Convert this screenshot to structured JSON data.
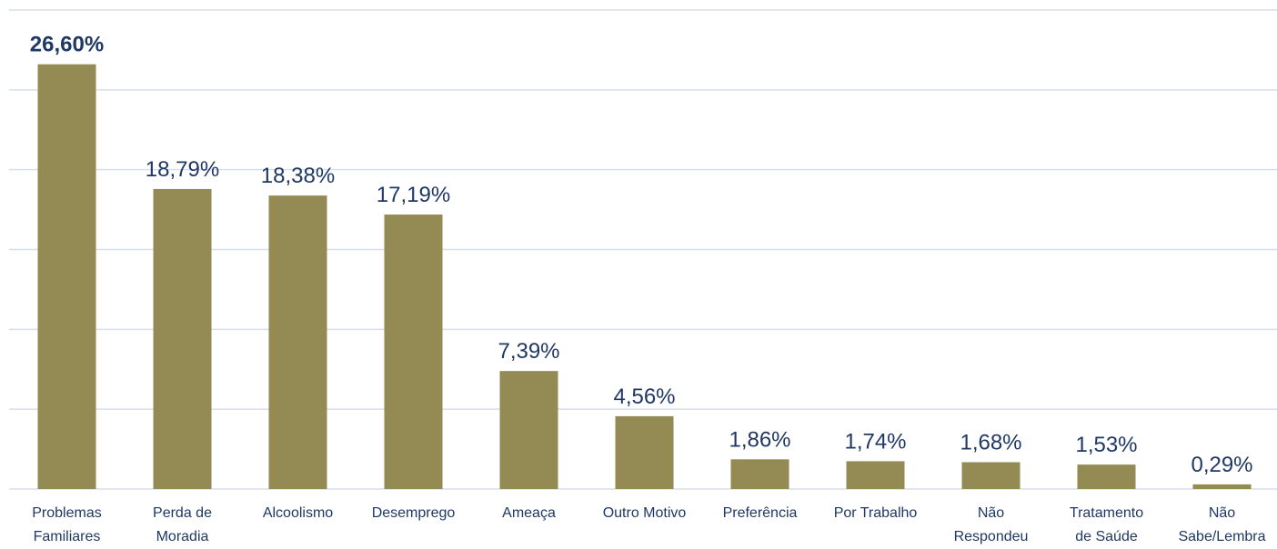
{
  "chart_data": {
    "type": "bar",
    "categories": [
      "Problemas\nFamiliares",
      "Perda de\nMoradia",
      "Alcoolismo",
      "Desemprego",
      "Ameaça",
      "Outro Motivo",
      "Preferência",
      "Por Trabalho",
      "Não\nRespondeu",
      "Tratamento\nde Saúde",
      "Não\nSabe/Lembra"
    ],
    "values": [
      26.6,
      18.79,
      18.38,
      17.19,
      7.39,
      4.56,
      1.86,
      1.74,
      1.68,
      1.53,
      0.29
    ],
    "value_labels": [
      "26,60%",
      "18,79%",
      "18,38%",
      "17,19%",
      "7,39%",
      "4,56%",
      "1,86%",
      "1,74%",
      "1,68%",
      "1,53%",
      "0,29%"
    ],
    "color": "#948a54",
    "ylim": [
      0,
      30
    ],
    "yticks": [
      0,
      5,
      10,
      15,
      20,
      25,
      30
    ],
    "grid": true
  }
}
